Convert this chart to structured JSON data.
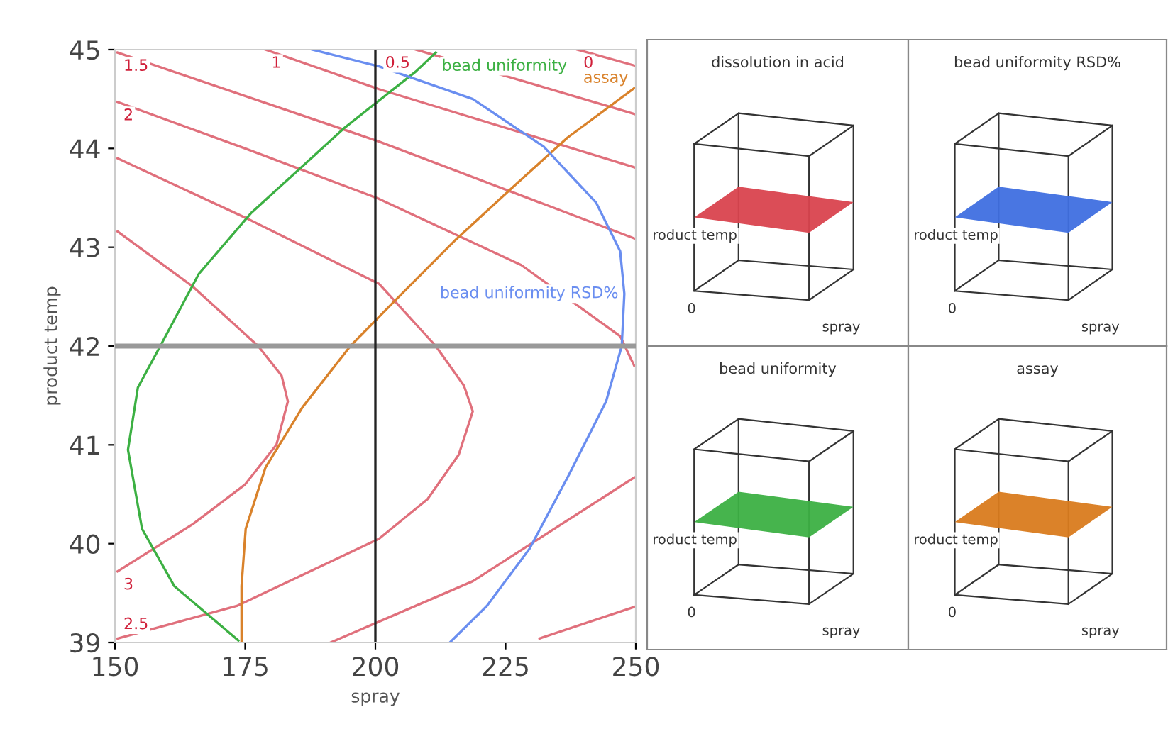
{
  "chart_data": [
    {
      "type": "line",
      "xlabel": "spray",
      "ylabel": "product temp",
      "xlim": [
        150,
        250
      ],
      "ylim": [
        39,
        45
      ],
      "xticks": [
        150,
        175,
        200,
        225,
        250
      ],
      "yticks": [
        39,
        40,
        41,
        42,
        43,
        44,
        45
      ],
      "grid": false,
      "marker": "none",
      "line_style": "solid",
      "series": [
        {
          "color": "#e0707c",
          "x": [
            238.8,
            249.7
          ],
          "values": [
            45.0,
            44.84
          ]
        },
        {
          "color": "#e0707c",
          "x": [
            207.8,
            249.7
          ],
          "values": [
            45.0,
            44.35
          ]
        },
        {
          "color": "#e0707c",
          "x": [
            178.9,
            200.7,
            249.7
          ],
          "values": [
            45.0,
            44.6,
            43.81
          ]
        },
        {
          "color": "#e0707c",
          "x": [
            150.5,
            200.7,
            249.7
          ],
          "values": [
            44.97,
            44.07,
            43.09
          ]
        },
        {
          "color": "#e0707c",
          "x": [
            150.5,
            175,
            200.7,
            228,
            247,
            249.7
          ],
          "values": [
            44.47,
            44.0,
            43.49,
            42.82,
            42.1,
            41.8
          ]
        },
        {
          "color": "#e0707c",
          "x": [
            150.5,
            175,
            200.7,
            211.6,
            217,
            218.7,
            216,
            210,
            200.7,
            173.4,
            150.5
          ],
          "values": [
            43.9,
            43.3,
            42.63,
            42.0,
            41.6,
            41.34,
            40.9,
            40.45,
            40.05,
            39.37,
            39.04
          ]
        },
        {
          "color": "#e0707c",
          "x": [
            150.5,
            165,
            177.5,
            182,
            183.2,
            181,
            175,
            165,
            150.5
          ],
          "values": [
            43.16,
            42.6,
            42.0,
            41.7,
            41.44,
            41.0,
            40.6,
            40.2,
            39.72
          ]
        },
        {
          "color": "#e0707c",
          "x": [
            191.4,
            218.7,
            249.7
          ],
          "values": [
            39.0,
            39.62,
            40.67
          ]
        },
        {
          "color": "#e0707c",
          "x": [
            231.5,
            249.7
          ],
          "values": [
            39.04,
            39.36
          ]
        },
        {
          "color": "#3cb043",
          "x": [
            173.7,
            161.4,
            155.2,
            152.5,
            154.4,
            158.7,
            166.1,
            176.2,
            186,
            194.1,
            207.8,
            211.6
          ],
          "values": [
            39.02,
            39.57,
            40.15,
            40.95,
            41.58,
            42.0,
            42.73,
            43.35,
            43.82,
            44.21,
            44.78,
            44.97
          ]
        },
        {
          "color": "#d9822b",
          "x": [
            174.3,
            174.3,
            175.1,
            178.9,
            186,
            195.2,
            203.4,
            215.1,
            226,
            236.9,
            249.7
          ],
          "values": [
            39.0,
            39.57,
            40.15,
            40.77,
            41.38,
            42.0,
            42.44,
            43.06,
            43.59,
            44.11,
            44.61
          ]
        },
        {
          "color": "#6a8ef0",
          "x": [
            187.9,
            200.7,
            218.7,
            232.3,
            242.4,
            247,
            247.8,
            247.3,
            244.3,
            236.9,
            229.6,
            221.4,
            214.3
          ],
          "values": [
            45.0,
            44.83,
            44.5,
            44.02,
            43.45,
            42.96,
            42.53,
            42.0,
            41.44,
            40.67,
            39.95,
            39.37,
            39.0
          ]
        }
      ],
      "ref_lines": [
        {
          "axis": "y",
          "value": 42,
          "color": "#999999"
        },
        {
          "axis": "x",
          "value": 200,
          "color": "#222222"
        }
      ],
      "annotations": [
        {
          "text": "1.5",
          "x": 150.5,
          "y": 44.97
        },
        {
          "text": "1",
          "x": 178.9,
          "y": 45.0
        },
        {
          "text": "0.5",
          "x": 207.8,
          "y": 45.0
        },
        {
          "text": "0",
          "x": 238.8,
          "y": 45.0
        },
        {
          "text": "2",
          "x": 150.5,
          "y": 44.47
        },
        {
          "text": "3",
          "x": 150.5,
          "y": 39.72
        },
        {
          "text": "2.5",
          "x": 150.5,
          "y": 39.04
        },
        {
          "text": "bead uniformity",
          "x": 211.6,
          "y": 44.97
        },
        {
          "text": "assay",
          "x": 249.7,
          "y": 44.61
        },
        {
          "text": "bead uniformity RSD%",
          "x": 247.8,
          "y": 42.53
        }
      ]
    },
    {
      "type": "other",
      "title": "dissolution in acid",
      "color": "#d9434e",
      "annotations": [
        "roduct temp",
        "0",
        "spray"
      ]
    },
    {
      "type": "other",
      "title": "bead uniformity RSD%",
      "color": "#3f6fe0",
      "annotations": [
        "roduct temp",
        "0",
        "spray"
      ]
    },
    {
      "type": "other",
      "title": "bead uniformity",
      "color": "#3cb043",
      "annotations": [
        "roduct temp",
        "0",
        "spray"
      ]
    },
    {
      "type": "other",
      "title": "assay",
      "color": "#d97b1e",
      "annotations": [
        "roduct temp",
        "0",
        "spray"
      ]
    }
  ]
}
